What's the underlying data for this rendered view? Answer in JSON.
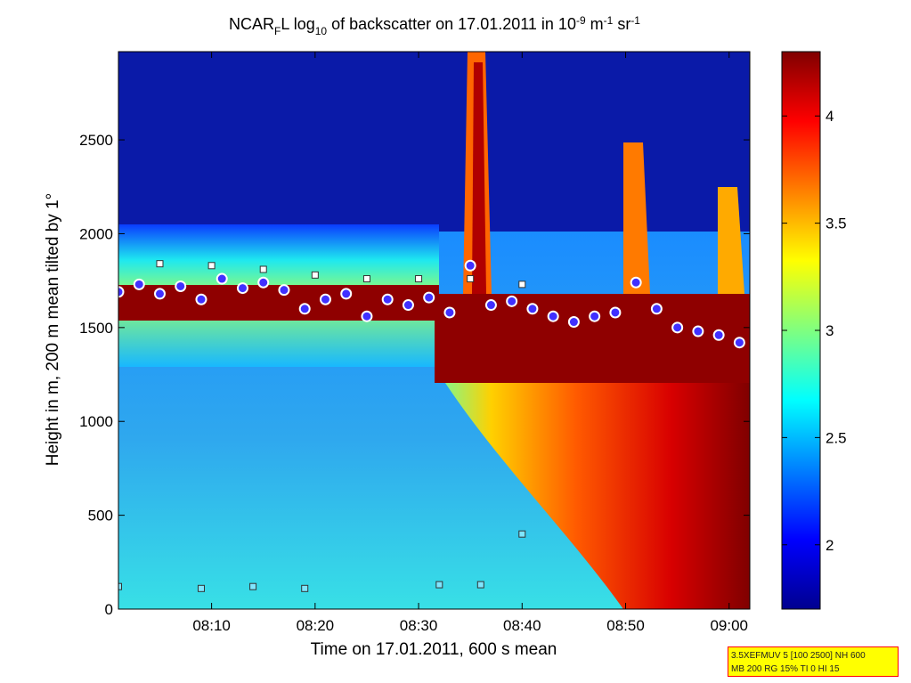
{
  "chart_data": {
    "type": "heatmap",
    "title": {
      "parts": [
        "NCAR",
        "F",
        "L log",
        "10",
        " of backscatter on 17.01.2011 in 10",
        "-9",
        " m",
        "-1",
        " sr",
        "-1"
      ]
    },
    "xlabel": "Time on 17.01.2011, 600 s mean",
    "ylabel": "Height in m, 200 m mean tilted by 1°",
    "x_range_minutes": [
      481,
      542
    ],
    "ylim": [
      0,
      2970
    ],
    "x_ticks": [
      {
        "minute": 490,
        "label": "08:10"
      },
      {
        "minute": 500,
        "label": "08:20"
      },
      {
        "minute": 510,
        "label": "08:30"
      },
      {
        "minute": 520,
        "label": "08:40"
      },
      {
        "minute": 530,
        "label": "08:50"
      },
      {
        "minute": 540,
        "label": "09:00"
      }
    ],
    "y_ticks": [
      0,
      500,
      1000,
      1500,
      2000,
      2500
    ],
    "colorbar": {
      "range": [
        1.7,
        4.3
      ],
      "ticks": [
        2,
        2.5,
        3,
        3.5,
        4
      ],
      "colormap": "jet"
    },
    "cloud_base_heights": [
      {
        "minute": 481,
        "height": 1690
      },
      {
        "minute": 483,
        "height": 1730
      },
      {
        "minute": 485,
        "height": 1680
      },
      {
        "minute": 487,
        "height": 1720
      },
      {
        "minute": 489,
        "height": 1650
      },
      {
        "minute": 491,
        "height": 1760
      },
      {
        "minute": 493,
        "height": 1710
      },
      {
        "minute": 495,
        "height": 1740
      },
      {
        "minute": 497,
        "height": 1700
      },
      {
        "minute": 499,
        "height": 1600
      },
      {
        "minute": 501,
        "height": 1650
      },
      {
        "minute": 503,
        "height": 1680
      },
      {
        "minute": 505,
        "height": 1560
      },
      {
        "minute": 507,
        "height": 1650
      },
      {
        "minute": 509,
        "height": 1620
      },
      {
        "minute": 511,
        "height": 1660
      },
      {
        "minute": 513,
        "height": 1580
      },
      {
        "minute": 515,
        "height": 1830
      },
      {
        "minute": 517,
        "height": 1620
      },
      {
        "minute": 519,
        "height": 1640
      },
      {
        "minute": 521,
        "height": 1600
      },
      {
        "minute": 523,
        "height": 1560
      },
      {
        "minute": 525,
        "height": 1530
      },
      {
        "minute": 527,
        "height": 1560
      },
      {
        "minute": 529,
        "height": 1580
      },
      {
        "minute": 531,
        "height": 1740
      },
      {
        "minute": 533,
        "height": 1600
      },
      {
        "minute": 535,
        "height": 1500
      },
      {
        "minute": 537,
        "height": 1480
      },
      {
        "minute": 539,
        "height": 1460
      },
      {
        "minute": 541,
        "height": 1420
      }
    ],
    "cloud_tops": [
      {
        "minute": 485,
        "height": 1840
      },
      {
        "minute": 490,
        "height": 1830
      },
      {
        "minute": 495,
        "height": 1810
      },
      {
        "minute": 500,
        "height": 1780
      },
      {
        "minute": 505,
        "height": 1760
      },
      {
        "minute": 510,
        "height": 1760
      },
      {
        "minute": 515,
        "height": 1760
      },
      {
        "minute": 520,
        "height": 1730
      }
    ],
    "low_layer_markers": [
      {
        "minute": 481,
        "height": 120
      },
      {
        "minute": 489,
        "height": 110
      },
      {
        "minute": 494,
        "height": 120
      },
      {
        "minute": 499,
        "height": 110
      },
      {
        "minute": 512,
        "height": 130
      },
      {
        "minute": 516,
        "height": 130
      },
      {
        "minute": 520,
        "height": 400
      }
    ]
  },
  "info_box": {
    "line1": "3.5XEFMUV 5 [100 2500] NH 600",
    "line2": "MB 200 RG 15% TI 0 HI 15"
  }
}
